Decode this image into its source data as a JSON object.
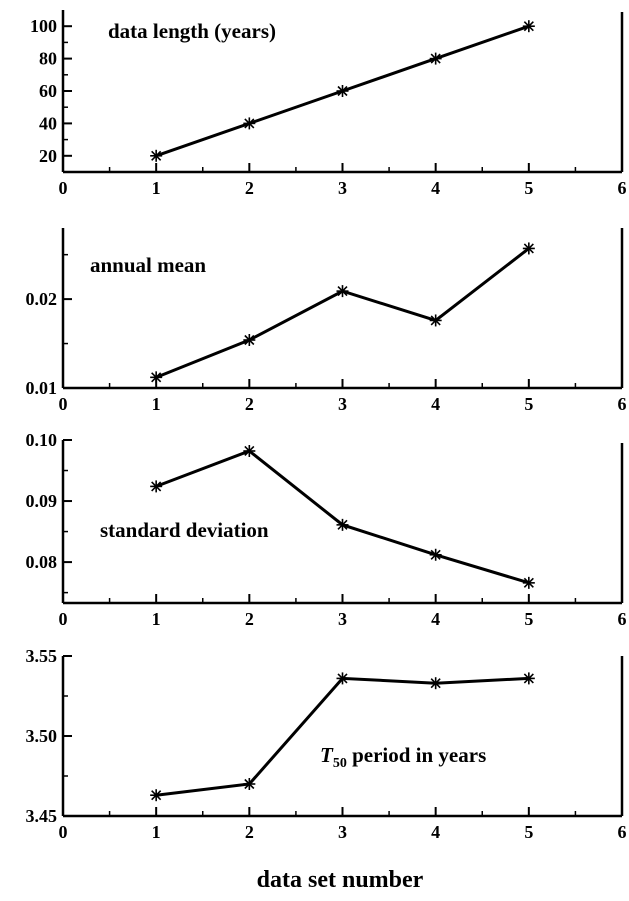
{
  "chart_data": [
    {
      "type": "line",
      "annotation": "data length (years)",
      "x": [
        1,
        2,
        3,
        4,
        5
      ],
      "y": [
        20,
        40,
        60,
        80,
        100
      ],
      "xlim": [
        0,
        6
      ],
      "ylim": [
        10,
        110
      ],
      "xticks": [
        "0",
        "1",
        "2",
        "3",
        "4",
        "5",
        "6"
      ],
      "yticks": [
        "20",
        "40",
        "60",
        "80",
        "100"
      ],
      "ytick_values": [
        20,
        40,
        60,
        80,
        100
      ],
      "marker": "asterisk",
      "grid": false
    },
    {
      "type": "line",
      "annotation": "annual mean",
      "x": [
        1,
        2,
        3,
        4,
        5
      ],
      "y": [
        0.0112,
        0.0154,
        0.0209,
        0.0176,
        0.0257
      ],
      "xlim": [
        0,
        6
      ],
      "ylim": [
        0.01,
        0.028
      ],
      "xticks": [
        "0",
        "1",
        "2",
        "3",
        "4",
        "5",
        "6"
      ],
      "yticks": [
        "0.01",
        "0.02"
      ],
      "ytick_values": [
        0.01,
        0.02
      ],
      "marker": "asterisk",
      "grid": false
    },
    {
      "type": "line",
      "annotation": "standard deviation",
      "x": [
        1,
        2,
        3,
        4,
        5
      ],
      "y": [
        0.0924,
        0.0982,
        0.0861,
        0.0812,
        0.0766
      ],
      "xlim": [
        0,
        6
      ],
      "ylim": [
        0.0733,
        0.1
      ],
      "xticks": [
        "0",
        "1",
        "2",
        "3",
        "4",
        "5",
        "6"
      ],
      "yticks": [
        "0.08",
        "0.09",
        "0.10"
      ],
      "ytick_values": [
        0.08,
        0.09,
        0.1
      ],
      "marker": "asterisk",
      "grid": false
    },
    {
      "type": "line",
      "annotation_italic": "T",
      "annotation_sub": "50",
      "annotation": " period in years",
      "x": [
        1,
        2,
        3,
        4,
        5
      ],
      "y": [
        3.463,
        3.47,
        3.536,
        3.533,
        3.536
      ],
      "xlim": [
        0,
        6
      ],
      "ylim": [
        3.45,
        3.55
      ],
      "xticks": [
        "0",
        "1",
        "2",
        "3",
        "4",
        "5",
        "6"
      ],
      "yticks": [
        "3.45",
        "3.50",
        "3.55"
      ],
      "ytick_values": [
        3.45,
        3.5,
        3.55
      ],
      "marker": "asterisk",
      "grid": false
    }
  ],
  "xlabel": "data set number"
}
